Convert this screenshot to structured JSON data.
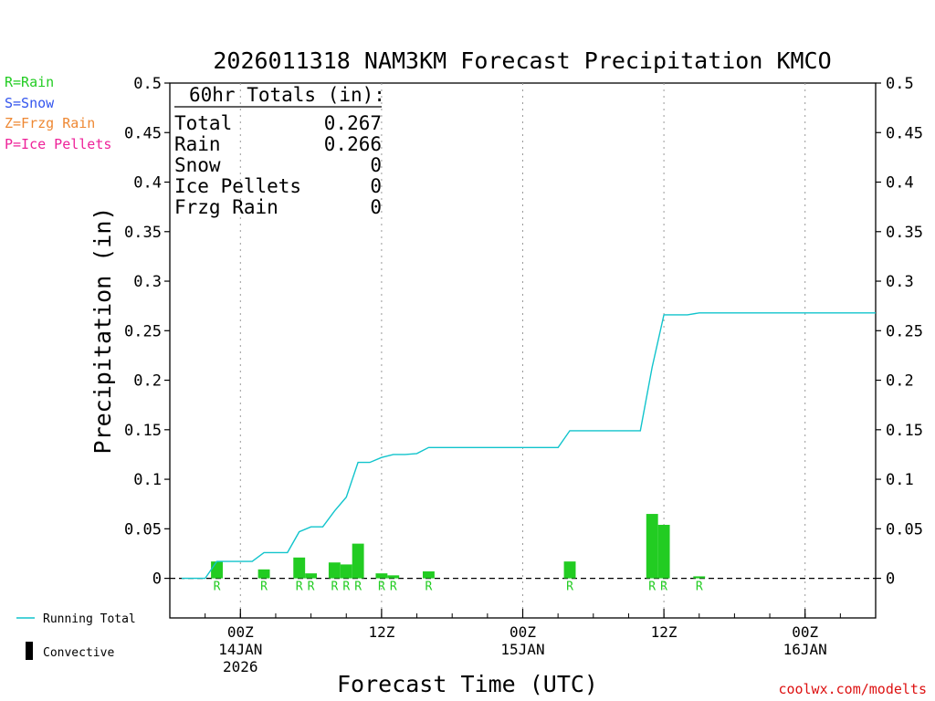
{
  "colors": {
    "rain": "#22cc22",
    "snow": "#3355ee",
    "frzg_rain": "#ee8833",
    "ice_pellets": "#ee2299",
    "running_total": "#11c4cc",
    "convective": "#000000",
    "credit": "#dd1111"
  },
  "legend_types": [
    {
      "label": "R=Rain",
      "color": "#22cc22"
    },
    {
      "label": "S=Snow",
      "color": "#3355ee"
    },
    {
      "label": "Z=Frzg Rain",
      "color": "#ee8833"
    },
    {
      "label": "P=Ice Pellets",
      "color": "#ee2299"
    }
  ],
  "legend_lines": {
    "running_total": "Running Total",
    "convective": "Convective"
  },
  "totals_box": {
    "header": "60hr Totals (in):",
    "rows": [
      {
        "label": "Total",
        "value": "0.267"
      },
      {
        "label": "Rain",
        "value": "0.266"
      },
      {
        "label": "Snow",
        "value": "0"
      },
      {
        "label": "Ice Pellets",
        "value": "0"
      },
      {
        "label": "Frzg Rain",
        "value": "0"
      }
    ]
  },
  "credit": "coolwx.com/modelts",
  "chart_data": {
    "type": "bar",
    "title": "2026011318 NAM3KM Forecast Precipitation KMCO",
    "xlabel": "Forecast Time (UTC)",
    "ylabel": "Precipitation (in)",
    "ylim": [
      -0.04,
      0.5
    ],
    "yticks": [
      "0.5",
      "0.45",
      "0.4",
      "0.35",
      "0.3",
      "0.25",
      "0.2",
      "0.15",
      "0.1",
      "0.05",
      "0"
    ],
    "xlim_hours": [
      -6,
      54
    ],
    "grid": "vertical dotted at 6-hourly labels",
    "xticks": [
      {
        "hour": 0,
        "lines": [
          "00Z",
          "14JAN",
          "2026"
        ]
      },
      {
        "hour": 12,
        "lines": [
          "12Z"
        ]
      },
      {
        "hour": 24,
        "lines": [
          "00Z",
          "15JAN"
        ]
      },
      {
        "hour": 36,
        "lines": [
          "12Z"
        ]
      },
      {
        "hour": 48,
        "lines": [
          "00Z",
          "16JAN"
        ]
      }
    ],
    "bars": [
      {
        "hour": -2,
        "value": 0.017,
        "ptype": "R"
      },
      {
        "hour": 2,
        "value": 0.009,
        "ptype": "R"
      },
      {
        "hour": 5,
        "value": 0.021,
        "ptype": "R"
      },
      {
        "hour": 6,
        "value": 0.005,
        "ptype": "R"
      },
      {
        "hour": 8,
        "value": 0.016,
        "ptype": "R"
      },
      {
        "hour": 9,
        "value": 0.014,
        "ptype": "R"
      },
      {
        "hour": 10,
        "value": 0.035,
        "ptype": "R"
      },
      {
        "hour": 12,
        "value": 0.005,
        "ptype": "R"
      },
      {
        "hour": 13,
        "value": 0.003,
        "ptype": "R"
      },
      {
        "hour": 16,
        "value": 0.007,
        "ptype": "R"
      },
      {
        "hour": 28,
        "value": 0.017,
        "ptype": "R"
      },
      {
        "hour": 35,
        "value": 0.065,
        "ptype": "R"
      },
      {
        "hour": 36,
        "value": 0.054,
        "ptype": "R"
      },
      {
        "hour": 39,
        "value": 0.002,
        "ptype": "R"
      }
    ],
    "running_total": {
      "name": "Running Total",
      "points": [
        [
          -5,
          0
        ],
        [
          -3,
          0
        ],
        [
          -2,
          0.017
        ],
        [
          1,
          0.017
        ],
        [
          2,
          0.026
        ],
        [
          4,
          0.026
        ],
        [
          5,
          0.047
        ],
        [
          6,
          0.052
        ],
        [
          7,
          0.052
        ],
        [
          8,
          0.068
        ],
        [
          9,
          0.082
        ],
        [
          10,
          0.117
        ],
        [
          11,
          0.117
        ],
        [
          12,
          0.122
        ],
        [
          13,
          0.125
        ],
        [
          14,
          0.125
        ],
        [
          15,
          0.126
        ],
        [
          16,
          0.132
        ],
        [
          27,
          0.132
        ],
        [
          28,
          0.149
        ],
        [
          34,
          0.149
        ],
        [
          35,
          0.213
        ],
        [
          36,
          0.266
        ],
        [
          38,
          0.266
        ],
        [
          39,
          0.268
        ],
        [
          54,
          0.268
        ]
      ]
    }
  }
}
